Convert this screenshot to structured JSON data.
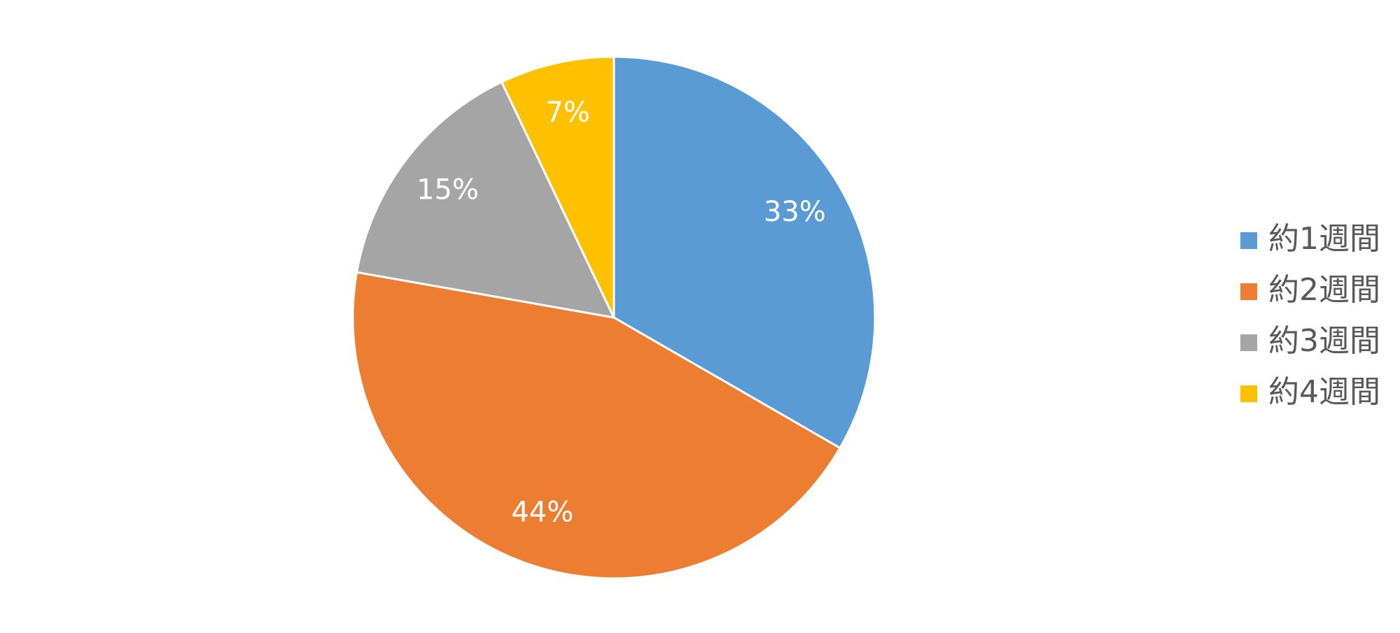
{
  "chart_data": {
    "type": "pie",
    "categories": [
      "約1週間",
      "約2週間",
      "約3週間",
      "約4週間"
    ],
    "values": [
      33,
      44,
      15,
      7
    ],
    "value_labels": [
      "33%",
      "44%",
      "15%",
      "7%"
    ],
    "colors": [
      "#5b9bd5",
      "#ed7d31",
      "#a5a5a5",
      "#ffc000"
    ],
    "legend": "right"
  }
}
